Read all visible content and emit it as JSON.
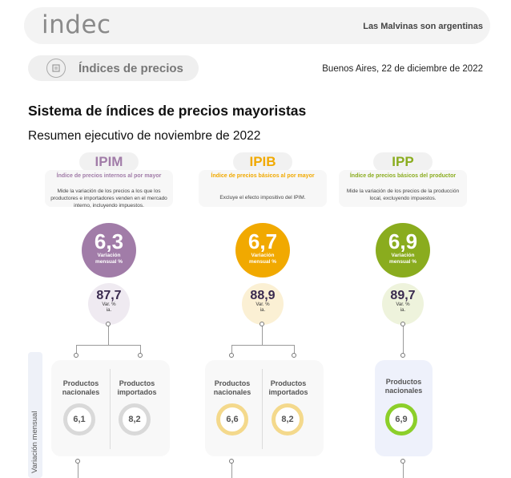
{
  "header": {
    "logo": "indec",
    "tagline": "Las Malvinas son argentinas"
  },
  "section": {
    "title": "Índices de precios",
    "date": "Buenos Aires, 22 de diciembre de 2022"
  },
  "document": {
    "title": "Sistema de índices de precios mayoristas",
    "subtitle": "Resumen ejecutivo de noviembre de 2022"
  },
  "colors": {
    "ipim": "#a17ca8",
    "ipib": "#f1a900",
    "ipp": "#8aac1e",
    "ring_grey": "#d9d9d9",
    "ring_yellow": "#f4d98c",
    "ring_green": "#8ccf2a"
  },
  "indices": [
    {
      "name": "IPIM",
      "full_name": "Índice de precios internos al por mayor",
      "description": "Mide la variación de los precios a los que los productores e importadores venden en el mercado interno, incluyendo impuestos.",
      "monthly_value": "6,3",
      "monthly_label_1": "Variación",
      "monthly_label_2": "mensual %",
      "annual_value": "87,7",
      "annual_label_1": "Var. %",
      "annual_label_2": "ia."
    },
    {
      "name": "IPIB",
      "full_name": "Índice de precios básicos al por mayor",
      "description": "Excluye el efecto impositivo del IPIM.",
      "monthly_value": "6,7",
      "monthly_label_1": "Variación",
      "monthly_label_2": "mensual %",
      "annual_value": "88,9",
      "annual_label_1": "Var. %",
      "annual_label_2": "ia."
    },
    {
      "name": "IPP",
      "full_name": "Índice de precios básicos del productor",
      "description": "Mide la variación de los precios de la producción local, excluyendo impuestos.",
      "monthly_value": "6,9",
      "monthly_label_1": "Variación",
      "monthly_label_2": "mensual %",
      "annual_value": "89,7",
      "annual_label_1": "Var. %",
      "annual_label_2": "ia."
    }
  ],
  "monthly_variation": {
    "side_label": "Variación mensual",
    "ipim": {
      "nacionales_label": "Productos nacionales",
      "nacionales_value": "6,1",
      "importados_label": "Productos importados",
      "importados_value": "8,2"
    },
    "ipib": {
      "nacionales_label": "Productos nacionales",
      "nacionales_value": "6,6",
      "importados_label": "Productos importados",
      "importados_value": "8,2"
    },
    "ipp": {
      "nacionales_label": "Productos nacionales",
      "nacionales_value": "6,9"
    }
  }
}
